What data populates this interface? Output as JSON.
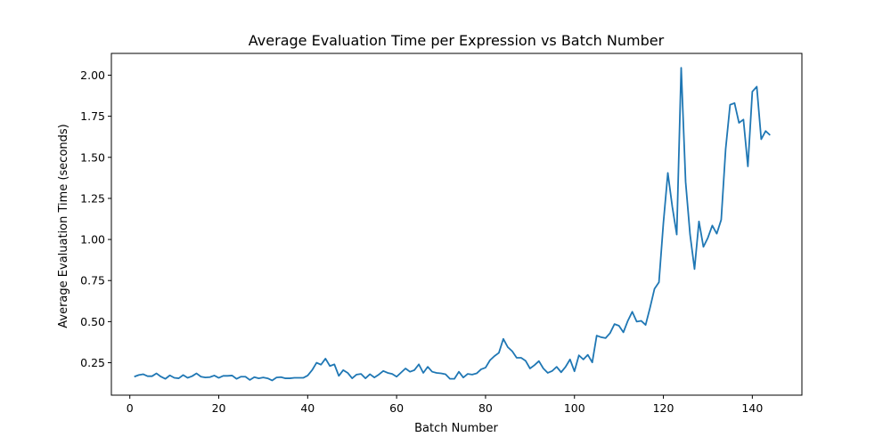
{
  "chart_data": {
    "type": "line",
    "title": "Average Evaluation Time per Expression vs Batch Number",
    "xlabel": "Batch Number",
    "ylabel": "Average Evaluation Time (seconds)",
    "xlim": [
      -4.15,
      151.15
    ],
    "ylim": [
      0.0525,
      2.1325
    ],
    "xticks": [
      0,
      20,
      40,
      60,
      80,
      100,
      120,
      140
    ],
    "xtick_labels": [
      "0",
      "20",
      "40",
      "60",
      "80",
      "100",
      "120",
      "140"
    ],
    "yticks": [
      0.25,
      0.5,
      0.75,
      1.0,
      1.25,
      1.5,
      1.75,
      2.0
    ],
    "ytick_labels": [
      "0.25",
      "0.50",
      "0.75",
      "1.00",
      "1.25",
      "1.50",
      "1.75",
      "2.00"
    ],
    "grid": false,
    "legend": "none",
    "line_color": "#1f77b4",
    "series": [
      {
        "x": [
          1,
          2,
          3,
          4,
          5,
          6,
          7,
          8,
          9,
          10,
          11,
          12,
          13,
          14,
          15,
          16,
          17,
          18,
          19,
          20,
          21,
          22,
          23,
          24,
          25,
          26,
          27,
          28,
          29,
          30,
          31,
          32,
          33,
          34,
          35,
          36,
          37,
          38,
          39,
          40,
          41,
          42,
          43,
          44,
          45,
          46,
          47,
          48,
          49,
          50,
          51,
          52,
          53,
          54,
          55,
          56,
          57,
          58,
          59,
          60,
          61,
          62,
          63,
          64,
          65,
          66,
          67,
          68,
          69,
          70,
          71,
          72,
          73,
          74,
          75,
          76,
          77,
          78,
          79,
          80,
          81,
          82,
          83,
          84,
          85,
          86,
          87,
          88,
          89,
          90,
          91,
          92,
          93,
          94,
          95,
          96,
          97,
          98,
          99,
          100,
          101,
          102,
          103,
          104,
          105,
          106,
          107,
          108,
          109,
          110,
          111,
          112,
          113,
          114,
          115,
          116,
          117,
          118,
          119,
          120,
          121,
          122,
          123,
          124,
          125,
          126,
          127,
          128,
          129,
          130,
          131,
          132,
          133,
          134,
          135,
          136,
          137,
          138,
          139,
          140,
          141,
          142,
          143,
          144
        ],
        "values": [
          0.165,
          0.175,
          0.18,
          0.168,
          0.168,
          0.185,
          0.165,
          0.152,
          0.173,
          0.158,
          0.155,
          0.175,
          0.158,
          0.168,
          0.185,
          0.165,
          0.16,
          0.162,
          0.172,
          0.158,
          0.17,
          0.17,
          0.172,
          0.152,
          0.165,
          0.165,
          0.145,
          0.162,
          0.155,
          0.16,
          0.155,
          0.142,
          0.16,
          0.162,
          0.155,
          0.155,
          0.158,
          0.158,
          0.158,
          0.172,
          0.205,
          0.25,
          0.238,
          0.275,
          0.23,
          0.24,
          0.17,
          0.205,
          0.188,
          0.155,
          0.178,
          0.182,
          0.155,
          0.18,
          0.16,
          0.178,
          0.2,
          0.188,
          0.182,
          0.165,
          0.19,
          0.215,
          0.195,
          0.205,
          0.24,
          0.188,
          0.225,
          0.195,
          0.188,
          0.185,
          0.18,
          0.152,
          0.152,
          0.195,
          0.16,
          0.182,
          0.178,
          0.185,
          0.21,
          0.22,
          0.265,
          0.29,
          0.31,
          0.395,
          0.345,
          0.32,
          0.28,
          0.28,
          0.262,
          0.215,
          0.235,
          0.26,
          0.215,
          0.188,
          0.2,
          0.225,
          0.192,
          0.225,
          0.27,
          0.198,
          0.295,
          0.27,
          0.298,
          0.252,
          0.415,
          0.405,
          0.4,
          0.43,
          0.485,
          0.475,
          0.435,
          0.505,
          0.56,
          0.5,
          0.505,
          0.48,
          0.585,
          0.7,
          0.74,
          1.1,
          1.405,
          1.2,
          1.03,
          2.045,
          1.35,
          1.03,
          0.82,
          1.11,
          0.955,
          1.01,
          1.085,
          1.035,
          1.12,
          1.55,
          1.82,
          1.83,
          1.71,
          1.73,
          1.445,
          1.9,
          1.93,
          1.61,
          1.66,
          1.635
        ]
      }
    ]
  }
}
